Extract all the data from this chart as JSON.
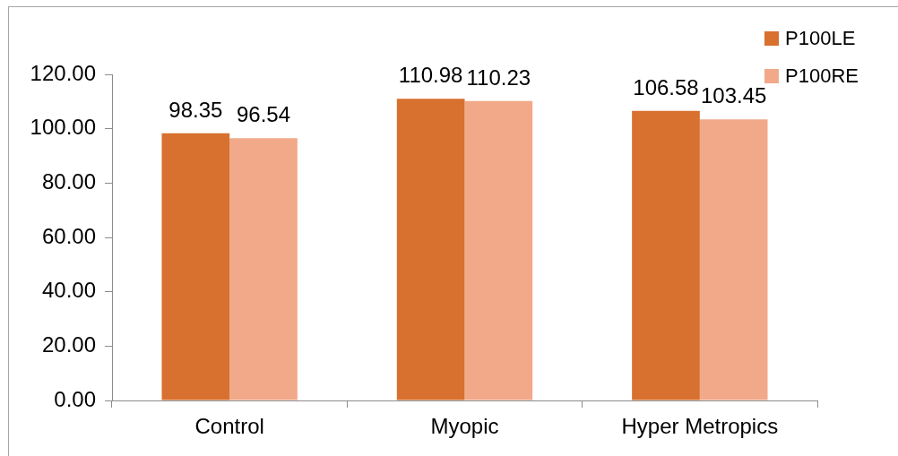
{
  "chart_data": {
    "type": "bar",
    "categories": [
      "Control",
      "Myopic",
      "Hyper Metropics"
    ],
    "series": [
      {
        "name": "P100LE",
        "color": "#d8702f",
        "values": [
          98.35,
          110.98,
          106.58
        ]
      },
      {
        "name": "P100RE",
        "color": "#f1a98a",
        "values": [
          96.54,
          110.23,
          103.45
        ]
      }
    ],
    "ylim": [
      0,
      120
    ],
    "yticks": [
      {
        "value": 0,
        "label": "0.00"
      },
      {
        "value": 20,
        "label": "20.00"
      },
      {
        "value": 40,
        "label": "40.00"
      },
      {
        "value": 60,
        "label": "60.00"
      },
      {
        "value": 80,
        "label": "80.00"
      },
      {
        "value": 100,
        "label": "100.00"
      },
      {
        "value": 120,
        "label": "120.00"
      }
    ],
    "grid": false,
    "legend": "top right",
    "data_labels": true
  }
}
